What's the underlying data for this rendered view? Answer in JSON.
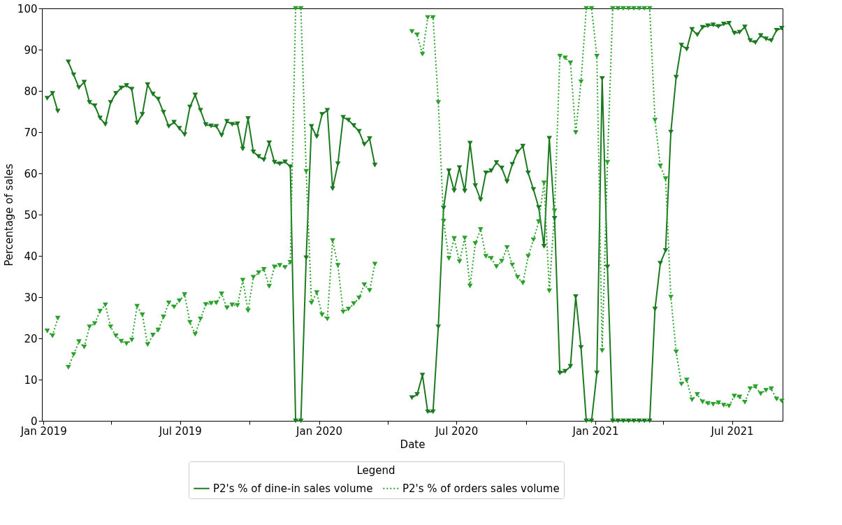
{
  "chart_data": {
    "type": "line",
    "xlabel": "Date",
    "ylabel": "Percentage of sales",
    "legend_title": "Legend",
    "legend": "bottom",
    "grid": false,
    "marker": "triangle",
    "x": [
      "2019-01-06",
      "2019-01-13",
      "2019-01-20",
      "2019-01-27",
      "2019-02-03",
      "2019-02-10",
      "2019-02-17",
      "2019-02-24",
      "2019-03-03",
      "2019-03-10",
      "2019-03-17",
      "2019-03-24",
      "2019-03-31",
      "2019-04-07",
      "2019-04-14",
      "2019-04-21",
      "2019-04-28",
      "2019-05-05",
      "2019-05-12",
      "2019-05-19",
      "2019-05-26",
      "2019-06-02",
      "2019-06-09",
      "2019-06-16",
      "2019-06-23",
      "2019-06-30",
      "2019-07-07",
      "2019-07-14",
      "2019-07-21",
      "2019-07-28",
      "2019-08-04",
      "2019-08-11",
      "2019-08-18",
      "2019-08-25",
      "2019-09-01",
      "2019-09-08",
      "2019-09-15",
      "2019-09-22",
      "2019-09-29",
      "2019-10-06",
      "2019-10-13",
      "2019-10-20",
      "2019-10-27",
      "2019-11-03",
      "2019-11-10",
      "2019-11-17",
      "2019-11-24",
      "2019-12-01",
      "2019-12-08",
      "2019-12-15",
      "2019-12-22",
      "2019-12-29",
      "2020-01-05",
      "2020-01-12",
      "2020-01-19",
      "2020-01-26",
      "2020-02-02",
      "2020-02-09",
      "2020-02-16",
      "2020-02-23",
      "2020-03-01",
      "2020-03-08",
      "2020-03-15",
      "2020-03-22",
      "2020-03-29",
      "2020-04-05",
      "2020-04-12",
      "2020-04-19",
      "2020-04-26",
      "2020-05-03",
      "2020-05-10",
      "2020-05-17",
      "2020-05-24",
      "2020-05-31",
      "2020-06-07",
      "2020-06-14",
      "2020-06-21",
      "2020-06-28",
      "2020-07-05",
      "2020-07-12",
      "2020-07-19",
      "2020-07-26",
      "2020-08-02",
      "2020-08-09",
      "2020-08-16",
      "2020-08-23",
      "2020-08-30",
      "2020-09-06",
      "2020-09-13",
      "2020-09-20",
      "2020-09-27",
      "2020-10-04",
      "2020-10-11",
      "2020-10-18",
      "2020-10-25",
      "2020-11-01",
      "2020-11-08",
      "2020-11-15",
      "2020-11-22",
      "2020-11-29",
      "2020-12-06",
      "2020-12-13",
      "2020-12-20",
      "2020-12-27",
      "2021-01-03",
      "2021-01-10",
      "2021-01-17",
      "2021-01-24",
      "2021-01-31",
      "2021-02-07",
      "2021-02-14",
      "2021-02-21",
      "2021-02-28",
      "2021-03-07",
      "2021-03-14",
      "2021-03-21",
      "2021-03-28",
      "2021-04-04",
      "2021-04-11",
      "2021-04-18",
      "2021-04-25",
      "2021-05-02",
      "2021-05-09",
      "2021-05-16",
      "2021-05-23",
      "2021-05-30",
      "2021-06-06",
      "2021-06-13",
      "2021-06-20",
      "2021-06-27",
      "2021-07-04",
      "2021-07-11",
      "2021-07-18",
      "2021-07-25",
      "2021-08-01",
      "2021-08-08",
      "2021-08-15",
      "2021-08-22",
      "2021-08-29",
      "2021-09-05"
    ],
    "series": [
      {
        "name": "P2's % of dine-in sales volume",
        "color": "#1b7a1f",
        "line_style": "solid",
        "values": [
          78.2,
          79.4,
          75.1,
          null,
          87.0,
          83.9,
          80.8,
          82.1,
          77.2,
          76.4,
          73.4,
          71.9,
          77.2,
          79.4,
          80.7,
          81.3,
          80.4,
          72.2,
          74.3,
          81.5,
          79.2,
          78.0,
          74.8,
          71.4,
          72.4,
          70.9,
          69.4,
          76.1,
          79.0,
          75.3,
          71.8,
          71.5,
          71.4,
          69.2,
          72.6,
          71.9,
          72.0,
          65.9,
          73.3,
          65.2,
          64.1,
          63.3,
          67.4,
          62.7,
          62.3,
          62.8,
          61.6,
          0,
          0,
          39.5,
          71.4,
          68.9,
          74.3,
          75.3,
          56.3,
          62.3,
          73.6,
          72.9,
          71.6,
          70.2,
          67.0,
          68.4,
          62.0,
          null,
          null,
          null,
          null,
          null,
          null,
          5.6,
          6.4,
          11.1,
          2.2,
          2.2,
          22.8,
          51.6,
          60.6,
          55.8,
          61.4,
          55.7,
          67.3,
          57.0,
          53.6,
          60.1,
          60.6,
          62.6,
          61.3,
          58.0,
          62.2,
          65.2,
          66.6,
          60.1,
          56.1,
          51.7,
          42.3,
          68.5,
          49.1,
          11.6,
          12.0,
          13.2,
          30.1,
          17.8,
          0,
          0,
          11.6,
          83.0,
          37.3,
          0,
          0,
          0,
          0,
          0,
          0,
          0,
          0,
          27.1,
          38.2,
          41.3,
          70.0,
          83.3,
          91.1,
          90.1,
          94.9,
          93.6,
          95.4,
          95.8,
          96.0,
          95.6,
          96.2,
          96.4,
          94.0,
          94.2,
          95.5,
          92.2,
          91.7,
          93.4,
          92.6,
          92.2,
          94.7,
          95.2
        ]
      },
      {
        "name": "P2's % of orders sales volume",
        "color": "#2ca02c",
        "line_style": "dotted",
        "values": [
          21.8,
          20.6,
          24.9,
          null,
          13.0,
          16.1,
          19.2,
          17.9,
          22.8,
          23.6,
          26.6,
          28.1,
          22.8,
          20.6,
          19.3,
          18.7,
          19.6,
          27.8,
          25.7,
          18.5,
          20.8,
          22.0,
          25.2,
          28.6,
          27.6,
          29.1,
          30.6,
          23.9,
          21.0,
          24.7,
          28.2,
          28.5,
          28.6,
          30.8,
          27.4,
          28.1,
          28.0,
          34.1,
          26.7,
          34.8,
          35.9,
          36.7,
          32.6,
          37.3,
          37.7,
          37.2,
          38.4,
          100,
          100,
          60.5,
          28.6,
          31.1,
          25.7,
          24.7,
          43.7,
          37.7,
          26.4,
          27.1,
          28.4,
          29.8,
          33.0,
          31.6,
          38.0,
          null,
          null,
          null,
          null,
          null,
          null,
          94.4,
          93.6,
          88.9,
          97.8,
          97.8,
          77.2,
          48.4,
          39.4,
          44.2,
          38.6,
          44.3,
          32.7,
          43.0,
          46.4,
          39.9,
          39.4,
          37.4,
          38.7,
          42.0,
          37.8,
          34.8,
          33.4,
          39.9,
          43.9,
          48.3,
          57.7,
          31.5,
          50.9,
          88.4,
          88.0,
          86.8,
          69.9,
          82.2,
          100,
          100,
          88.4,
          17.0,
          62.7,
          100,
          100,
          100,
          100,
          100,
          100,
          100,
          100,
          72.9,
          61.8,
          58.7,
          30.0,
          16.7,
          8.9,
          9.9,
          5.1,
          6.4,
          4.6,
          4.2,
          4.0,
          4.4,
          3.8,
          3.6,
          6.0,
          5.8,
          4.5,
          7.8,
          8.3,
          6.6,
          7.4,
          7.8,
          5.3,
          4.8
        ]
      }
    ],
    "xlim": [
      "2018-12-30",
      "2021-09-06"
    ],
    "xticks": [
      {
        "value": "2019-01-01",
        "label": "Jan 2019"
      },
      {
        "value": "2019-04-01",
        "label": null
      },
      {
        "value": "2019-07-01",
        "label": "Jul 2019"
      },
      {
        "value": "2019-10-01",
        "label": null
      },
      {
        "value": "2020-01-01",
        "label": "Jan 2020"
      },
      {
        "value": "2020-04-01",
        "label": null
      },
      {
        "value": "2020-07-01",
        "label": "Jul 2020"
      },
      {
        "value": "2020-10-01",
        "label": null
      },
      {
        "value": "2021-01-01",
        "label": "Jan 2021"
      },
      {
        "value": "2021-04-01",
        "label": null
      },
      {
        "value": "2021-07-01",
        "label": "Jul 2021"
      }
    ],
    "ylim": [
      0,
      100
    ],
    "yticks": [
      0,
      10,
      20,
      30,
      40,
      50,
      60,
      70,
      80,
      90,
      100
    ]
  }
}
